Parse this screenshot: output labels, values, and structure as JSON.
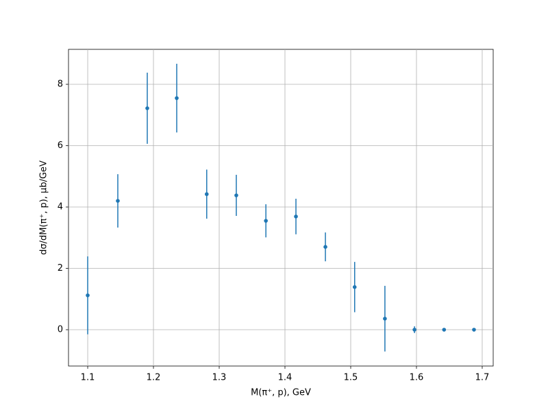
{
  "chart_data": {
    "type": "errorbar",
    "x_label": "M(π⁺, p), GeV",
    "y_label": "dσ/dM(π⁺, p), μb/GeV",
    "x": [
      1.1,
      1.1458,
      1.1906,
      1.2354,
      1.281,
      1.326,
      1.371,
      1.4167,
      1.4615,
      1.506,
      1.552,
      1.597,
      1.642,
      1.6875
    ],
    "values": [
      1.12,
      4.2,
      7.22,
      7.55,
      4.42,
      4.38,
      3.55,
      3.69,
      2.7,
      1.39,
      0.36,
      0,
      0,
      0
    ],
    "errors": [
      1.27,
      0.87,
      1.16,
      1.12,
      0.8,
      0.67,
      0.54,
      0.58,
      0.47,
      0.82,
      1.07,
      0.11,
      0,
      0
    ],
    "color": "#1f77b4",
    "xlim": [
      1.0708,
      1.7167
    ],
    "xticks": [
      1.1,
      1.2,
      1.3,
      1.4,
      1.5,
      1.6,
      1.7
    ],
    "ylim": [
      -1.184,
      9.14
    ],
    "yticks": [
      0,
      2,
      4,
      6,
      8
    ],
    "grid": true
  }
}
